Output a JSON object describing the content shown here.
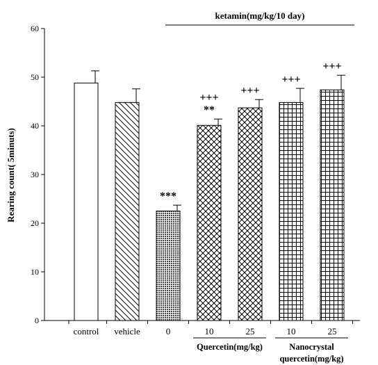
{
  "chart_data": {
    "type": "bar",
    "title": "",
    "xlabel": "",
    "ylabel": "Rearing count( 5minuts)",
    "ylim": [
      0,
      60
    ],
    "yticks": [
      0,
      10,
      20,
      30,
      40,
      50,
      60
    ],
    "grid": false,
    "legend": "none",
    "categories": [
      "control",
      "vehicle",
      "0",
      "10",
      "25",
      "10",
      "25"
    ],
    "values": [
      48.8,
      44.8,
      22.5,
      40.1,
      43.7,
      44.8,
      47.4
    ],
    "errors": [
      2.5,
      2.8,
      1.2,
      1.3,
      1.7,
      2.9,
      3.0
    ],
    "patterns": [
      "blank",
      "diagonal-hatch",
      "dense-dots",
      "cross-hatch",
      "cross-hatch",
      "grid",
      "grid"
    ],
    "annotations": [
      "",
      "",
      "***",
      "+++\n**",
      "+++",
      "+++",
      "+++"
    ],
    "top_group_label": "ketamin(mg/kg/10 day)",
    "group_labels": [
      {
        "text": "Quercetin(mg/kg)",
        "bars": [
          3,
          4
        ]
      },
      {
        "text": "Nanocrystal\nquercetin(mg/kg)",
        "bars": [
          5,
          6
        ]
      }
    ]
  }
}
